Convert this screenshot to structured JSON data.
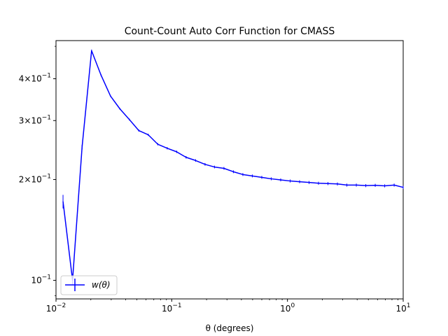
{
  "chart_data": {
    "type": "line",
    "title": "Count-Count Auto Corr Function for CMASS",
    "xlabel": "θ (degrees)",
    "ylabel": "",
    "xscale": "log",
    "yscale": "log",
    "xlim": [
      0.01,
      10
    ],
    "ylim": [
      0.088,
      0.52
    ],
    "x_ticks": [
      {
        "value": 0.01,
        "base": "10",
        "exp": "−2"
      },
      {
        "value": 0.1,
        "base": "10",
        "exp": "−1"
      },
      {
        "value": 1,
        "base": "10",
        "exp": "0"
      },
      {
        "value": 10,
        "base": "10",
        "exp": "1"
      }
    ],
    "y_ticks": [
      {
        "value": 0.1,
        "coef": "",
        "base": "10",
        "exp": "−1"
      },
      {
        "value": 0.2,
        "coef": "2×",
        "base": "10",
        "exp": "−1"
      },
      {
        "value": 0.3,
        "coef": "3×",
        "base": "10",
        "exp": "−1"
      },
      {
        "value": 0.4,
        "coef": "4×",
        "base": "10",
        "exp": "−1"
      }
    ],
    "series": [
      {
        "name": "w(θ)",
        "color": "#0000ff",
        "x": [
          0.0115,
          0.0139,
          0.0168,
          0.0203,
          0.0245,
          0.0296,
          0.0357,
          0.0431,
          0.052,
          0.0627,
          0.0757,
          0.0914,
          0.1103,
          0.1331,
          0.1607,
          0.194,
          0.2341,
          0.2826,
          0.3411,
          0.4117,
          0.4969,
          0.5998,
          0.7239,
          0.8738,
          1.0547,
          1.273,
          1.5366,
          1.8546,
          2.2385,
          2.702,
          3.2613,
          3.9364,
          4.7512,
          5.7347,
          6.9218,
          8.3546,
          10.0
        ],
        "y": [
          0.172,
          0.1,
          0.25,
          0.485,
          0.41,
          0.355,
          0.325,
          0.302,
          0.28,
          0.272,
          0.255,
          0.248,
          0.242,
          0.233,
          0.228,
          0.222,
          0.218,
          0.216,
          0.211,
          0.207,
          0.205,
          0.203,
          0.201,
          0.1995,
          0.198,
          0.197,
          0.196,
          0.195,
          0.1945,
          0.194,
          0.1925,
          0.1925,
          0.1918,
          0.1922,
          0.1915,
          0.1925,
          0.1895
        ],
        "errors": [
          0.008,
          0.003,
          0.004,
          0.004,
          0.003,
          0.002,
          0.002,
          0.002,
          0.002,
          0.002,
          0.002,
          0.002,
          0.002,
          0.002,
          0.002,
          0.002,
          0.002,
          0.002,
          0.002,
          0.002,
          0.002,
          0.002,
          0.002,
          0.002,
          0.002,
          0.002,
          0.002,
          0.002,
          0.002,
          0.002,
          0.002,
          0.002,
          0.002,
          0.002,
          0.002,
          0.002,
          0.002
        ]
      }
    ],
    "legend": {
      "placement": "lower-left",
      "label": "w(θ)"
    }
  }
}
